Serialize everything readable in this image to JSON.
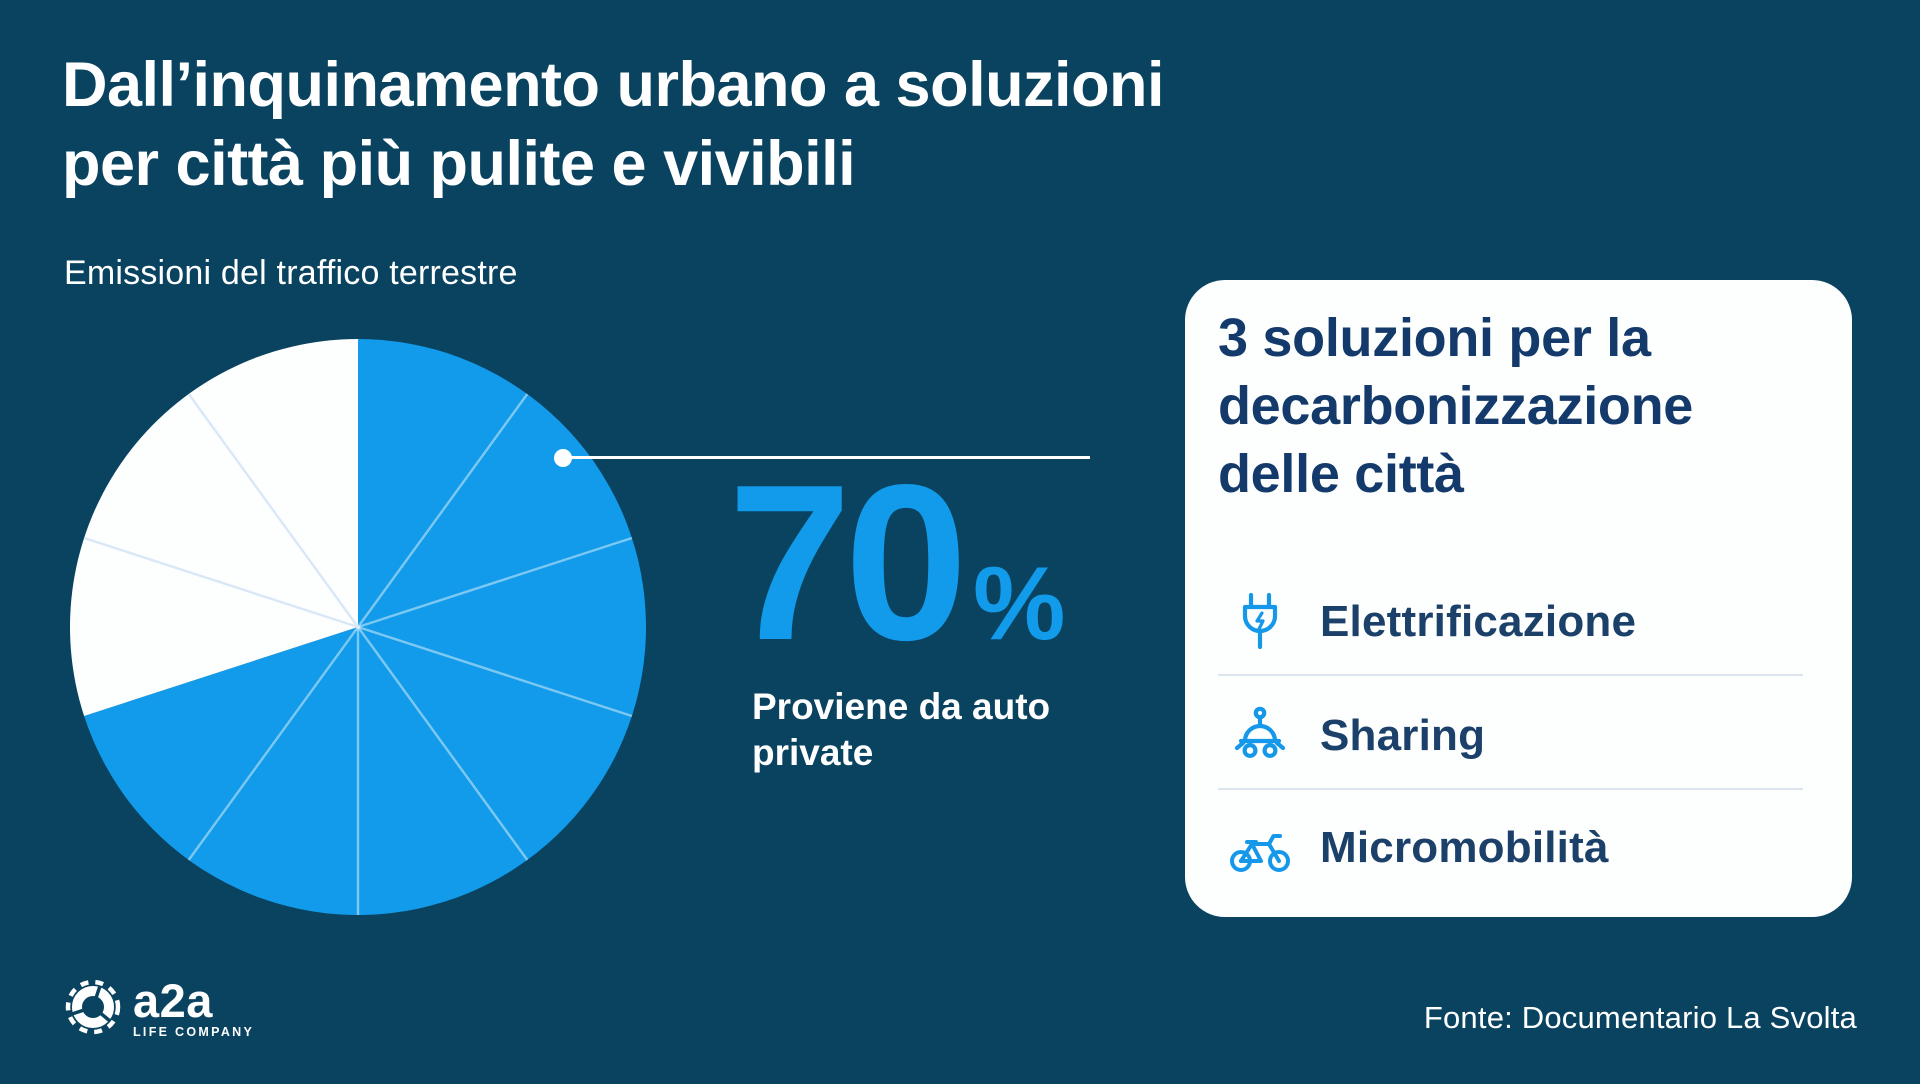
{
  "header": {
    "title_lines": [
      "Dall’inquinamento urbano a soluzioni",
      "per città più pulite e vivibili"
    ]
  },
  "chart_data": {
    "type": "pie",
    "title": "Emissioni del traffico terrestre",
    "values": [
      70,
      30
    ],
    "colors": [
      "#119BEA",
      "#FDFEFE"
    ],
    "gridline_every_percent": 10,
    "start_angle_deg": 0,
    "direction": "clockwise",
    "legend": "none",
    "callout": {
      "value": "70",
      "unit": "%",
      "label_lines": [
        "Proviene da auto",
        "private"
      ]
    }
  },
  "solutions_card": {
    "title_lines": [
      "3 soluzioni per la",
      "decarbonizzazione",
      "delle città"
    ],
    "items": [
      {
        "icon": "plug-icon",
        "label": "Elettrificazione"
      },
      {
        "icon": "car-sharing-icon",
        "label": "Sharing"
      },
      {
        "icon": "bicycle-icon",
        "label": "Micromobilità"
      }
    ]
  },
  "footer": {
    "logo_text": "a2a",
    "logo_tagline": "LIFE COMPANY",
    "source": "Fonte: Documentario La Svolta"
  },
  "colors": {
    "background": "#094360",
    "accent_blue": "#119BEA",
    "card_bg": "#FDFEFE",
    "navy_text": "#133A6B",
    "divider": "#DCE4EE",
    "spoke_on_blue": "rgba(255,255,255,0.45)",
    "spoke_on_white": "#D9E8F6"
  }
}
